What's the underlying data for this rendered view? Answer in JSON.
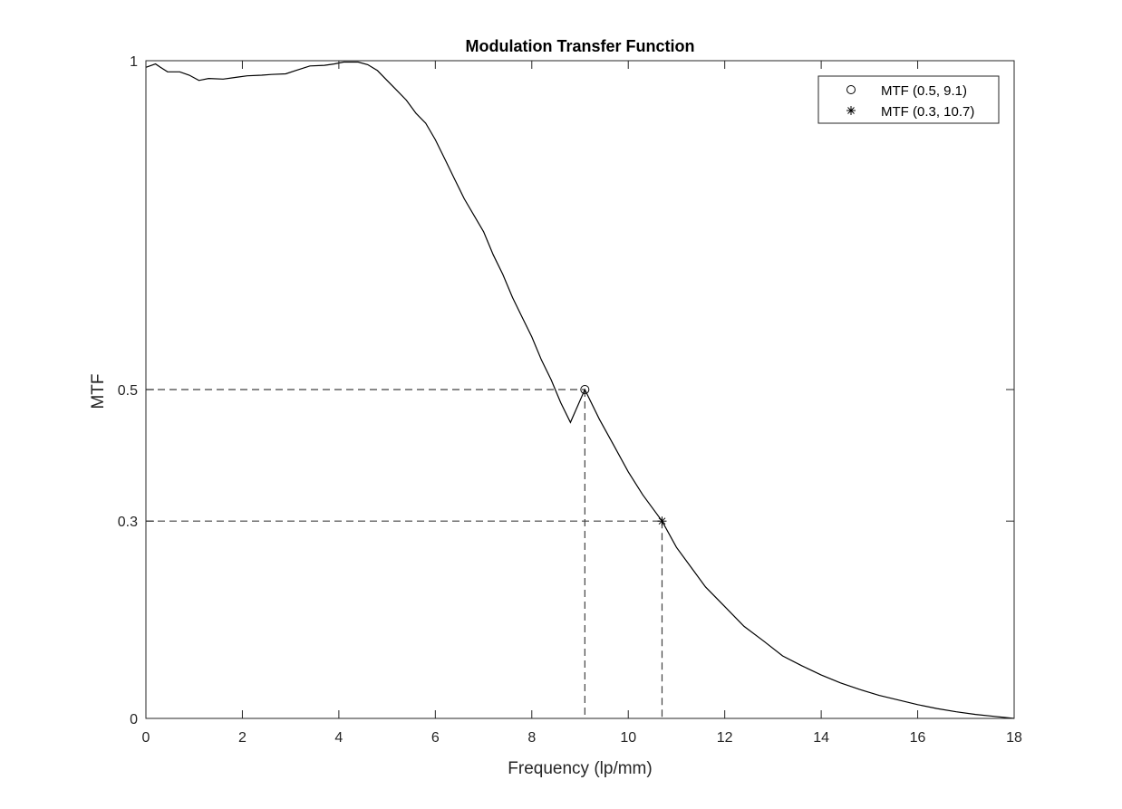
{
  "chart_data": {
    "type": "line",
    "title": "Modulation Transfer Function",
    "xlabel": "Frequency (lp/mm)",
    "ylabel": "MTF",
    "xlim": [
      0,
      18
    ],
    "ylim": [
      0,
      1
    ],
    "xticks": [
      0,
      2,
      4,
      6,
      8,
      10,
      12,
      14,
      16,
      18
    ],
    "xtick_labels": [
      "0",
      "2",
      "4",
      "6",
      "8",
      "10",
      "12",
      "14",
      "16",
      "18"
    ],
    "yticks": [
      0,
      0.3,
      0.5,
      1
    ],
    "ytick_labels": [
      "0",
      "0.3",
      "0.5",
      "1"
    ],
    "grid": false,
    "legend_position": "top-right",
    "colors": {
      "line": "#000000",
      "reference": "#404040",
      "axes": "#262626"
    },
    "series": [
      {
        "type": "line",
        "x": [
          0,
          0.2,
          0.3,
          0.45,
          0.7,
          0.9,
          1.1,
          1.3,
          1.6,
          1.9,
          2.1,
          2.4,
          2.6,
          2.9,
          3.1,
          3.4,
          3.7,
          3.9,
          4.1,
          4.4,
          4.6,
          4.8,
          5.0,
          5.2,
          5.4,
          5.6,
          5.8,
          6.0,
          6.2,
          6.4,
          6.6,
          6.8,
          7.0,
          7.2,
          7.4,
          7.6,
          7.8,
          8.0,
          8.2,
          8.4,
          8.6,
          8.8,
          9.1,
          9.4,
          9.7,
          10.0,
          10.3,
          10.7,
          11.0,
          11.3,
          11.6,
          12.0,
          12.4,
          12.8,
          13.2,
          13.6,
          14.0,
          14.4,
          14.8,
          15.2,
          15.6,
          16.0,
          16.4,
          16.8,
          17.2,
          17.6,
          18.0
        ],
        "y": [
          0.99,
          0.995,
          0.99,
          0.983,
          0.983,
          0.978,
          0.97,
          0.973,
          0.972,
          0.975,
          0.977,
          0.978,
          0.979,
          0.98,
          0.985,
          0.992,
          0.993,
          0.995,
          0.998,
          0.998,
          0.994,
          0.985,
          0.97,
          0.955,
          0.94,
          0.92,
          0.905,
          0.88,
          0.85,
          0.82,
          0.79,
          0.765,
          0.74,
          0.705,
          0.675,
          0.64,
          0.61,
          0.58,
          0.545,
          0.515,
          0.48,
          0.45,
          0.5,
          0.455,
          0.415,
          0.375,
          0.34,
          0.3,
          0.26,
          0.23,
          0.2,
          0.17,
          0.14,
          0.118,
          0.095,
          0.08,
          0.066,
          0.054,
          0.044,
          0.035,
          0.028,
          0.021,
          0.015,
          0.01,
          0.006,
          0.003,
          0.0
        ]
      }
    ],
    "markers": [
      {
        "name": "MTF (0.5, 9.1)",
        "x": 9.1,
        "y": 0.5,
        "symbol": "circle"
      },
      {
        "name": "MTF (0.3, 10.7)",
        "x": 10.7,
        "y": 0.3,
        "symbol": "asterisk"
      }
    ]
  }
}
